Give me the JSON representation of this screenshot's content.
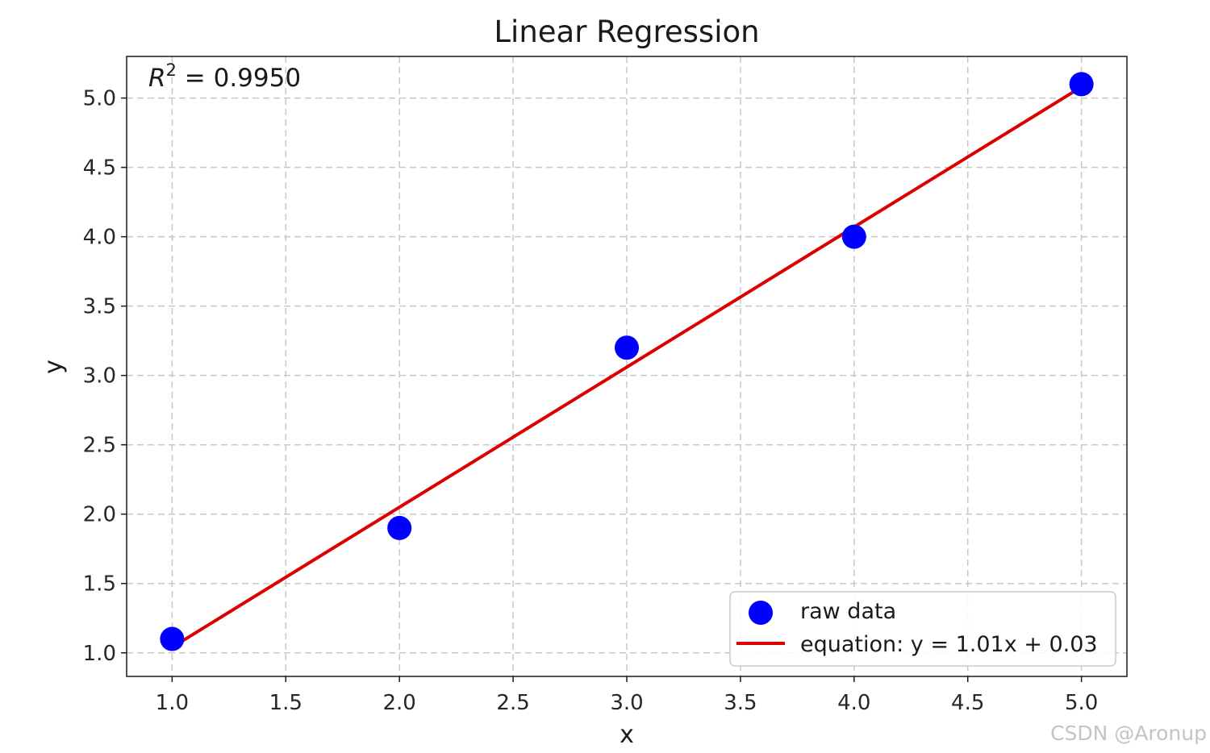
{
  "chart_data": {
    "type": "scatter",
    "title": "Linear Regression",
    "xlabel": "x",
    "ylabel": "y",
    "xlim": [
      0.8,
      5.2
    ],
    "ylim": [
      0.83,
      5.3
    ],
    "xticks": [
      1.0,
      1.5,
      2.0,
      2.5,
      3.0,
      3.5,
      4.0,
      4.5,
      5.0
    ],
    "yticks": [
      1.0,
      1.5,
      2.0,
      2.5,
      3.0,
      3.5,
      4.0,
      4.5,
      5.0
    ],
    "grid": true,
    "legend_position": "lower-right",
    "series": [
      {
        "name": "raw data",
        "kind": "scatter",
        "color": "#0000ff",
        "x": [
          1,
          2,
          3,
          4,
          5
        ],
        "y": [
          1.1,
          1.9,
          3.2,
          4.0,
          5.1
        ]
      },
      {
        "name": "equation: y = 1.01x + 0.03",
        "kind": "line",
        "color": "#dd0000",
        "slope": 1.01,
        "intercept": 0.03,
        "x": [
          1,
          5
        ]
      }
    ],
    "annotation": {
      "base": "R",
      "superscript": "2",
      "text": " = 0.9950",
      "position": "top-left"
    }
  },
  "watermark": "CSDN @Aronup"
}
